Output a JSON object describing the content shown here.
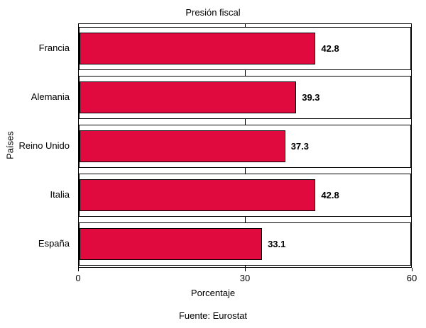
{
  "chart_data": {
    "type": "bar",
    "orientation": "horizontal",
    "title": "Presión fiscal",
    "categories": [
      "Francia",
      "Alemania",
      "Reino Unido",
      "Italia",
      "España"
    ],
    "values": [
      42.8,
      39.3,
      37.3,
      42.8,
      33.1
    ],
    "xlabel": "Porcentaje",
    "ylabel": "Países",
    "xlim": [
      0,
      60
    ],
    "xticks": [
      0,
      30,
      60
    ],
    "gridlines_x": [
      30
    ],
    "legend": "none",
    "source": "Fuente: Eurostat",
    "bar_color": "#e00a3e",
    "bar_border_color": "#000000"
  }
}
